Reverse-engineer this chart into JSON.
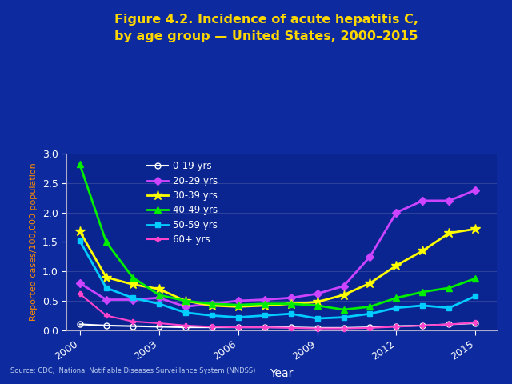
{
  "title_line1": "Figure 4.2. Incidence of acute hepatitis C,",
  "title_line2": "by age group — United States, 2000–2015",
  "xlabel": "Year",
  "ylabel": "Reported cases/100,000 population",
  "source": "Source: CDC,  National Notifiable Diseases Surveillance System (NNDSS)",
  "background_color": "#0d2b9e",
  "plot_bg_color": "#0a2590",
  "title_color": "#FFD700",
  "axis_label_color": "#FF8C00",
  "tick_label_color": "#FFFFFF",
  "years": [
    2000,
    2001,
    2002,
    2003,
    2004,
    2005,
    2006,
    2007,
    2008,
    2009,
    2010,
    2011,
    2012,
    2013,
    2014,
    2015
  ],
  "series": [
    {
      "label": "0-19 yrs",
      "color": "#FFFFFF",
      "marker": "o",
      "markerfacecolor": "none",
      "markersize": 5,
      "linewidth": 1.5,
      "values": [
        0.1,
        0.08,
        0.07,
        0.06,
        0.05,
        0.05,
        0.05,
        0.05,
        0.05,
        0.04,
        0.04,
        0.05,
        0.07,
        0.08,
        0.1,
        0.12
      ]
    },
    {
      "label": "20-29 yrs",
      "color": "#CC44FF",
      "marker": "D",
      "markerfacecolor": "#CC44FF",
      "markersize": 5,
      "linewidth": 2.0,
      "values": [
        0.8,
        0.52,
        0.52,
        0.55,
        0.4,
        0.45,
        0.5,
        0.52,
        0.55,
        0.62,
        0.75,
        1.25,
        2.0,
        2.2,
        2.2,
        2.38
      ]
    },
    {
      "label": "30-39 yrs",
      "color": "#FFFF00",
      "marker": "*",
      "markerfacecolor": "#FFFF00",
      "markersize": 9,
      "linewidth": 2.0,
      "values": [
        1.68,
        0.9,
        0.78,
        0.7,
        0.5,
        0.42,
        0.4,
        0.42,
        0.45,
        0.48,
        0.6,
        0.8,
        1.1,
        1.35,
        1.65,
        1.72
      ]
    },
    {
      "label": "40-49 yrs",
      "color": "#00EE00",
      "marker": "^",
      "markerfacecolor": "#00EE00",
      "markersize": 6,
      "linewidth": 2.0,
      "values": [
        2.82,
        1.5,
        0.9,
        0.6,
        0.5,
        0.45,
        0.43,
        0.45,
        0.45,
        0.42,
        0.35,
        0.4,
        0.55,
        0.65,
        0.72,
        0.88
      ]
    },
    {
      "label": "50-59 yrs",
      "color": "#00CCFF",
      "marker": "s",
      "markerfacecolor": "#00CCFF",
      "markersize": 5,
      "linewidth": 2.0,
      "values": [
        1.52,
        0.72,
        0.55,
        0.45,
        0.3,
        0.25,
        0.22,
        0.25,
        0.28,
        0.2,
        0.22,
        0.28,
        0.38,
        0.42,
        0.38,
        0.58
      ]
    },
    {
      "label": "60+ yrs",
      "color": "#FF44CC",
      "marker": "P",
      "markerfacecolor": "#FF44CC",
      "markersize": 5,
      "linewidth": 1.5,
      "values": [
        0.62,
        0.25,
        0.15,
        0.12,
        0.08,
        0.06,
        0.05,
        0.05,
        0.04,
        0.03,
        0.03,
        0.04,
        0.06,
        0.08,
        0.1,
        0.13
      ]
    }
  ],
  "ylim": [
    0,
    3.0
  ],
  "yticks": [
    0,
    0.5,
    1.0,
    1.5,
    2.0,
    2.5,
    3.0
  ],
  "xticks": [
    2000,
    2003,
    2006,
    2009,
    2012,
    2015
  ],
  "grid_color": "#AAAACC",
  "grid_alpha": 0.25,
  "spine_color": "#AAAACC"
}
